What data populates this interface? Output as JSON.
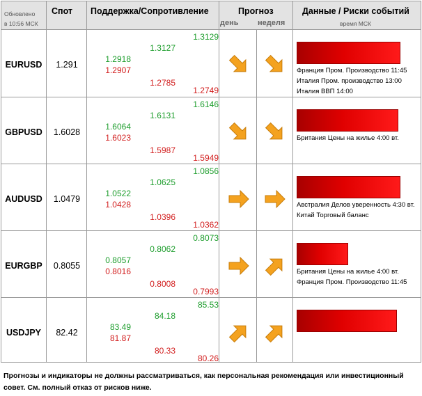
{
  "header": {
    "updated_line1": "Обновлено",
    "updated_line2": "в 10:56 МСК",
    "spot": "Спот",
    "support_resistance": "Поддержка/Сопротивление",
    "forecast": "Прогноз",
    "forecast_day": "день",
    "forecast_week": "неделя",
    "events": "Данные / Риски событий",
    "events_time": "время МСК"
  },
  "rows": [
    {
      "pair": "EURUSD",
      "spot": "1.291",
      "s1": "1.2918",
      "r1": "1.2907",
      "s2": "1.3127",
      "r2": "1.2785",
      "s3": "1.3129",
      "r3": "1.2749",
      "day_arrow": "arrow-down-right-icon",
      "week_arrow": "arrow-down-right-icon",
      "risk_level": 0.83,
      "events": [
        "Франция Пром. Производство 11:45",
        "Италия Пром. производство 13:00",
        "Италия ВВП 14:00"
      ]
    },
    {
      "pair": "GBPUSD",
      "spot": "1.6028",
      "s1": "1.6064",
      "r1": "1.6023",
      "s2": "1.6131",
      "r2": "1.5987",
      "s3": "1.6146",
      "r3": "1.5949",
      "day_arrow": "arrow-down-right-icon",
      "week_arrow": "arrow-down-right-icon",
      "risk_level": 0.81,
      "events": [
        "Британия Цены на жилье 4:00 вт."
      ]
    },
    {
      "pair": "AUDUSD",
      "spot": "1.0479",
      "s1": "1.0522",
      "r1": "1.0428",
      "s2": "1.0625",
      "r2": "1.0396",
      "s3": "1.0856",
      "r3": "1.0362",
      "day_arrow": "arrow-right-icon",
      "week_arrow": "arrow-right-icon",
      "risk_level": 0.83,
      "events": [
        "Австралия Делов уверенность 4:30 вт.",
        "Китай Торговый баланс"
      ]
    },
    {
      "pair": "EURGBP",
      "spot": "0.8055",
      "s1": "0.8057",
      "r1": "0.8016",
      "s2": "0.8062",
      "r2": "0.8008",
      "s3": "0.8073",
      "r3": "0.7993",
      "day_arrow": "arrow-right-icon",
      "week_arrow": "arrow-up-right-icon",
      "risk_level": 0.41,
      "events": [
        "Британия Цены на жилье 4:00 вт.",
        "Франция Пром. Производство 11:45"
      ]
    },
    {
      "pair": "USDJPY",
      "spot": "82.42",
      "s1": "83.49",
      "r1": "81.87",
      "s2": "84.18",
      "r2": "80.33",
      "s3": "85.53",
      "r3": "80.26",
      "day_arrow": "arrow-up-right-icon",
      "week_arrow": "arrow-up-right-icon",
      "risk_level": 0.8,
      "events": []
    }
  ],
  "disclaimer": "Прогнозы и индикаторы не должны рассматриваться, как персональная рекомендация или инвестиционный совет. См. полный отказ от рисков ниже.",
  "colors": {
    "support": "#1f9e2e",
    "resistance": "#d21f1f",
    "arrow": "#f4a21f",
    "risk_bar": "#e00000"
  }
}
